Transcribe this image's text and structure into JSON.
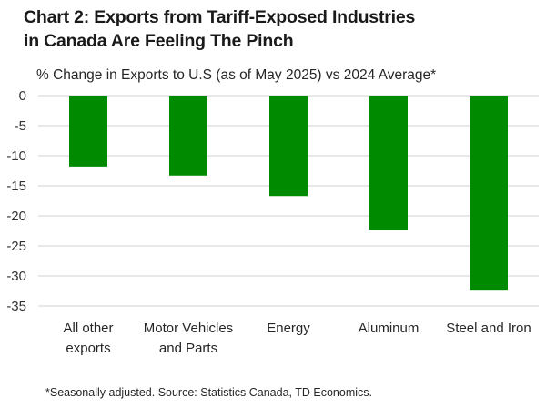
{
  "chart_data": {
    "type": "bar",
    "title_lines": [
      "Chart 2: Exports from Tariff-Exposed Industries",
      "in Canada Are Feeling The Pinch"
    ],
    "subtitle": "% Change in Exports to U.S (as of May 2025) vs 2024 Average*",
    "categories": [
      [
        "All other",
        "exports"
      ],
      [
        "Motor Vehicles",
        "and Parts"
      ],
      [
        "Energy"
      ],
      [
        "Aluminum"
      ],
      [
        "Steel and Iron"
      ]
    ],
    "series": [
      {
        "name": "% Change in Exports to U.S",
        "color": "#008a00",
        "values": [
          -11.8,
          -13.3,
          -16.7,
          -22.3,
          -32.3
        ]
      }
    ],
    "xlabel": "",
    "ylabel": "",
    "ylim": [
      -35,
      0
    ],
    "yticks": [
      0,
      -5,
      -10,
      -15,
      -20,
      -25,
      -30,
      -35
    ],
    "grid": true,
    "gridColor": "#e0e0e0",
    "legend": "none",
    "footnote": "*Seasonally adjusted. Source: Statistics Canada, TD Economics."
  }
}
